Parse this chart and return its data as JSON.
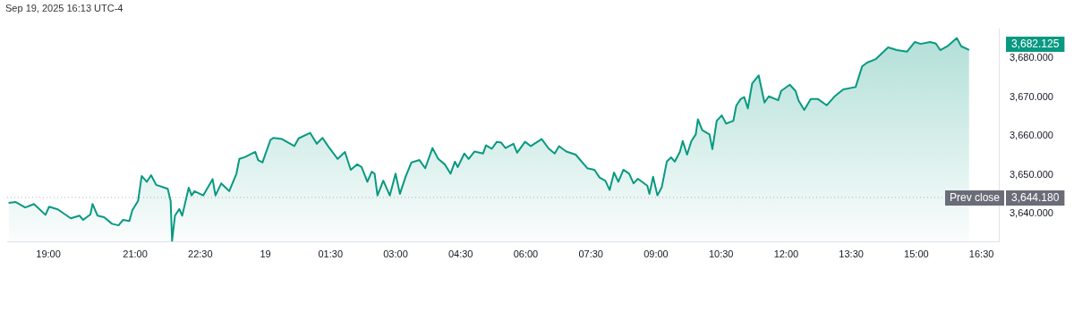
{
  "chart_data": {
    "type": "area",
    "title": "Sep 19, 2025 16:13 UTC-4",
    "series": [
      {
        "color": "#089981",
        "x": [
          "2025-09-18T18:05",
          "2025-09-18T18:15",
          "2025-09-18T18:28",
          "2025-09-18T18:40",
          "2025-09-18T18:56",
          "2025-09-18T19:01",
          "2025-09-18T19:13",
          "2025-09-18T19:31",
          "2025-09-18T19:43",
          "2025-09-18T19:48",
          "2025-09-18T19:58",
          "2025-09-18T20:01",
          "2025-09-18T20:08",
          "2025-09-18T20:17",
          "2025-09-18T20:28",
          "2025-09-18T20:37",
          "2025-09-18T20:43",
          "2025-09-18T20:52",
          "2025-09-18T20:56",
          "2025-09-18T21:04",
          "2025-09-18T21:09",
          "2025-09-18T21:16",
          "2025-09-18T21:22",
          "2025-09-18T21:29",
          "2025-09-18T21:39",
          "2025-09-18T21:45",
          "2025-09-18T21:49",
          "2025-09-18T21:51",
          "2025-09-18T21:55",
          "2025-09-18T22:01",
          "2025-09-18T22:05",
          "2025-09-18T22:14",
          "2025-09-18T22:18",
          "2025-09-18T22:22",
          "2025-09-18T22:34",
          "2025-09-18T22:47",
          "2025-09-18T22:51",
          "2025-09-18T22:59",
          "2025-09-18T23:10",
          "2025-09-18T23:20",
          "2025-09-18T23:24",
          "2025-09-18T23:32",
          "2025-09-18T23:46",
          "2025-09-18T23:50",
          "2025-09-18T23:56",
          "2025-09-19T00:07",
          "2025-09-19T00:11",
          "2025-09-19T00:23",
          "2025-09-19T00:40",
          "2025-09-19T00:46",
          "2025-09-19T01:02",
          "2025-09-19T01:11",
          "2025-09-19T01:19",
          "2025-09-19T01:27",
          "2025-09-19T01:40",
          "2025-09-19T01:50",
          "2025-09-19T01:58",
          "2025-09-19T02:07",
          "2025-09-19T02:08",
          "2025-09-19T02:13",
          "2025-09-19T02:21",
          "2025-09-19T02:27",
          "2025-09-19T02:31",
          "2025-09-19T02:35",
          "2025-09-19T02:43",
          "2025-09-19T02:52",
          "2025-09-19T03:00",
          "2025-09-19T03:06",
          "2025-09-19T03:14",
          "2025-09-19T03:22",
          "2025-09-19T03:33",
          "2025-09-19T03:41",
          "2025-09-19T03:51",
          "2025-09-19T03:59",
          "2025-09-19T04:08",
          "2025-09-19T04:16",
          "2025-09-19T04:22",
          "2025-09-19T04:26",
          "2025-09-19T04:35",
          "2025-09-19T04:41",
          "2025-09-19T04:49",
          "2025-09-19T05:01",
          "2025-09-19T05:05",
          "2025-09-19T05:13",
          "2025-09-19T05:20",
          "2025-09-19T05:26",
          "2025-09-19T05:32",
          "2025-09-19T05:43",
          "2025-09-19T05:48",
          "2025-09-19T05:59",
          "2025-09-19T06:07",
          "2025-09-19T06:22",
          "2025-09-19T06:32",
          "2025-09-19T06:40",
          "2025-09-19T06:46",
          "2025-09-19T06:56",
          "2025-09-19T07:09",
          "2025-09-19T07:25",
          "2025-09-19T07:35",
          "2025-09-19T07:42",
          "2025-09-19T07:50",
          "2025-09-19T07:56",
          "2025-09-19T08:02",
          "2025-09-19T08:08",
          "2025-09-19T08:15",
          "2025-09-19T08:23",
          "2025-09-19T08:29",
          "2025-09-19T08:35",
          "2025-09-19T08:48",
          "2025-09-19T08:51",
          "2025-09-19T08:56",
          "2025-09-19T09:02",
          "2025-09-19T09:08",
          "2025-09-19T09:15",
          "2025-09-19T09:21",
          "2025-09-19T09:26",
          "2025-09-19T09:33",
          "2025-09-19T09:37",
          "2025-09-19T09:43",
          "2025-09-19T09:49",
          "2025-09-19T09:55",
          "2025-09-19T09:58",
          "2025-09-19T10:04",
          "2025-09-19T10:14",
          "2025-09-19T10:18",
          "2025-09-19T10:24",
          "2025-09-19T10:31",
          "2025-09-19T10:37",
          "2025-09-19T10:47",
          "2025-09-19T10:51",
          "2025-09-19T10:57",
          "2025-09-19T11:02",
          "2025-09-19T11:07",
          "2025-09-19T11:13",
          "2025-09-19T11:22",
          "2025-09-19T11:30",
          "2025-09-19T11:36",
          "2025-09-19T11:49",
          "2025-09-19T11:53",
          "2025-09-19T12:05",
          "2025-09-19T12:13",
          "2025-09-19T12:17",
          "2025-09-19T12:25",
          "2025-09-19T12:34",
          "2025-09-19T12:44",
          "2025-09-19T12:56",
          "2025-09-19T13:07",
          "2025-09-19T13:19",
          "2025-09-19T13:36",
          "2025-09-19T13:45",
          "2025-09-19T13:52",
          "2025-09-19T14:04",
          "2025-09-19T14:21",
          "2025-09-19T14:33",
          "2025-09-19T14:47",
          "2025-09-19T14:58",
          "2025-09-19T15:06",
          "2025-09-19T15:19",
          "2025-09-19T15:27",
          "2025-09-19T15:33",
          "2025-09-19T15:43",
          "2025-09-19T15:56",
          "2025-09-19T16:02",
          "2025-09-19T16:13"
        ],
        "values": [
          3642.8,
          3643.0,
          3641.6,
          3642.5,
          3639.7,
          3641.8,
          3641.1,
          3638.8,
          3639.5,
          3638.4,
          3639.8,
          3642.5,
          3639.5,
          3639.1,
          3637.4,
          3637.0,
          3638.4,
          3638.1,
          3640.9,
          3643.3,
          3649.7,
          3648.2,
          3649.9,
          3647.4,
          3646.8,
          3646.4,
          3643.3,
          3633.0,
          3639.5,
          3641.2,
          3639.5,
          3646.7,
          3644.7,
          3645.8,
          3644.7,
          3648.9,
          3644.7,
          3647.8,
          3645.8,
          3650.3,
          3654.1,
          3654.6,
          3655.9,
          3653.8,
          3653.2,
          3659.0,
          3659.5,
          3659.2,
          3657.4,
          3659.4,
          3660.8,
          3658.0,
          3659.5,
          3657.3,
          3654.1,
          3655.9,
          3651.3,
          3652.7,
          3652.7,
          3652.0,
          3648.2,
          3650.8,
          3650.3,
          3644.7,
          3648.5,
          3644.7,
          3650.3,
          3645.1,
          3649.6,
          3653.2,
          3653.8,
          3651.7,
          3656.9,
          3654.1,
          3652.7,
          3650.3,
          3653.4,
          3652.0,
          3655.5,
          3654.1,
          3656.0,
          3655.5,
          3657.6,
          3656.7,
          3658.5,
          3658.3,
          3656.9,
          3658.0,
          3655.7,
          3658.5,
          3657.4,
          3659.2,
          3656.7,
          3655.5,
          3657.4,
          3656.0,
          3655.2,
          3651.7,
          3651.3,
          3649.3,
          3648.5,
          3646.1,
          3650.6,
          3648.2,
          3651.3,
          3650.3,
          3647.8,
          3649.0,
          3647.2,
          3645.1,
          3649.5,
          3644.7,
          3646.8,
          3653.4,
          3654.5,
          3653.4,
          3655.9,
          3658.7,
          3655.2,
          3658.7,
          3660.4,
          3664.3,
          3661.5,
          3660.4,
          3656.6,
          3663.9,
          3665.3,
          3663.2,
          3663.9,
          3667.8,
          3669.5,
          3670.0,
          3667.1,
          3673.5,
          3675.6,
          3668.6,
          3670.2,
          3669.2,
          3671.6,
          3673.2,
          3671.6,
          3669.2,
          3666.7,
          3669.5,
          3669.5,
          3667.9,
          3670.2,
          3672.0,
          3672.6,
          3677.9,
          3678.9,
          3679.8,
          3682.8,
          3682.1,
          3681.7,
          3684.2,
          3683.7,
          3684.2,
          3683.8,
          3682.1,
          3683.1,
          3685.2,
          3683.1,
          3682.125
        ]
      }
    ],
    "xlim": [
      "2025-09-18T18:03",
      "2025-09-19T16:54"
    ],
    "xticks": [
      {
        "value": "2025-09-18T19:00",
        "label": "19:00"
      },
      {
        "value": "2025-09-18T21:00",
        "label": "21:00"
      },
      {
        "value": "2025-09-18T22:30",
        "label": "22:30"
      },
      {
        "value": "2025-09-19T00:00",
        "label": "19"
      },
      {
        "value": "2025-09-19T01:30",
        "label": "01:30"
      },
      {
        "value": "2025-09-19T03:00",
        "label": "03:00"
      },
      {
        "value": "2025-09-19T04:30",
        "label": "04:30"
      },
      {
        "value": "2025-09-19T06:00",
        "label": "06:00"
      },
      {
        "value": "2025-09-19T07:30",
        "label": "07:30"
      },
      {
        "value": "2025-09-19T09:00",
        "label": "09:00"
      },
      {
        "value": "2025-09-19T10:30",
        "label": "10:30"
      },
      {
        "value": "2025-09-19T12:00",
        "label": "12:00"
      },
      {
        "value": "2025-09-19T13:30",
        "label": "13:30"
      },
      {
        "value": "2025-09-19T15:00",
        "label": "15:00"
      },
      {
        "value": "2025-09-19T16:30",
        "label": "16:30"
      }
    ],
    "ylim": [
      3632.7,
      3687.5
    ],
    "yticks": [
      {
        "value": 3640,
        "label": "3,640.000"
      },
      {
        "value": 3650,
        "label": "3,650.000"
      },
      {
        "value": 3660,
        "label": "3,660.000"
      },
      {
        "value": 3670,
        "label": "3,670.000"
      },
      {
        "value": 3680,
        "label": "3,680.000"
      }
    ],
    "grid": false,
    "legend": false,
    "marker": "none",
    "line_style": "solid",
    "ref_lines": [
      {
        "axis": "y",
        "value": 3644.18,
        "label": "Prev close",
        "color": "#6a6d78",
        "line_style": "dotted"
      }
    ],
    "annotations": [
      "3,682.125",
      "3,644.180"
    ]
  }
}
